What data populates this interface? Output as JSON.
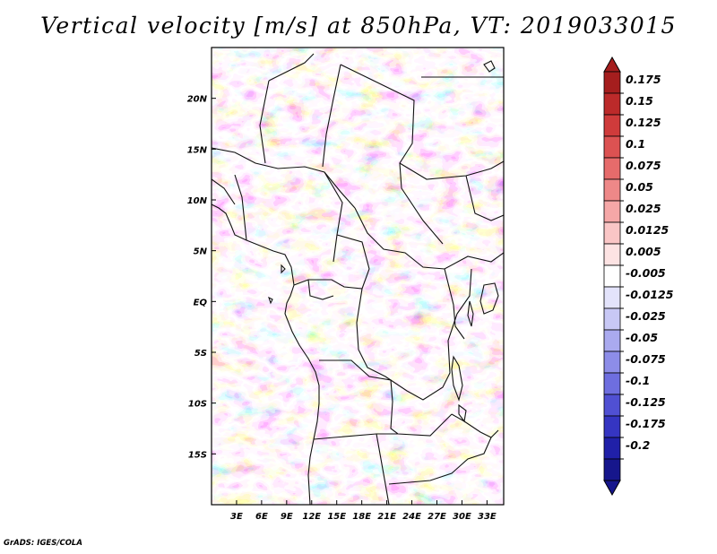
{
  "title": "Vertical velocity [m/s] at 850hPa, VT: 2019033015",
  "credit": "GrADS: IGES/COLA",
  "map": {
    "lon_range": [
      0,
      35
    ],
    "lat_range": [
      -20,
      25
    ],
    "lon_ticks": [
      {
        "value": 3,
        "label": "3E"
      },
      {
        "value": 6,
        "label": "6E"
      },
      {
        "value": 9,
        "label": "9E"
      },
      {
        "value": 12,
        "label": "12E"
      },
      {
        "value": 15,
        "label": "15E"
      },
      {
        "value": 18,
        "label": "18E"
      },
      {
        "value": 21,
        "label": "21E"
      },
      {
        "value": 24,
        "label": "24E"
      },
      {
        "value": 27,
        "label": "27E"
      },
      {
        "value": 30,
        "label": "30E"
      },
      {
        "value": 33,
        "label": "33E"
      }
    ],
    "lat_ticks": [
      {
        "value": 20,
        "label": "20N"
      },
      {
        "value": 15,
        "label": "15N"
      },
      {
        "value": 10,
        "label": "10N"
      },
      {
        "value": 5,
        "label": "5N"
      },
      {
        "value": 0,
        "label": "EQ"
      },
      {
        "value": -5,
        "label": "5S"
      },
      {
        "value": -10,
        "label": "10S"
      },
      {
        "value": -15,
        "label": "15S"
      }
    ]
  },
  "colorbar": {
    "levels": [
      {
        "label": "0.175",
        "color": "#a51e1e"
      },
      {
        "label": "0.15",
        "color": "#bc2a2a"
      },
      {
        "label": "0.125",
        "color": "#cf3b3b"
      },
      {
        "label": "0.1",
        "color": "#dc5252"
      },
      {
        "label": "0.075",
        "color": "#e66b6b"
      },
      {
        "label": "0.05",
        "color": "#ee8888"
      },
      {
        "label": "0.025",
        "color": "#f5a7a7"
      },
      {
        "label": "0.0125",
        "color": "#fac6c6"
      },
      {
        "label": "0.005",
        "color": "#fde3e3"
      },
      {
        "label": "-0.005",
        "color": "#ffffff"
      },
      {
        "label": "-0.0125",
        "color": "#e3e3fb"
      },
      {
        "label": "-0.025",
        "color": "#c8c8f5"
      },
      {
        "label": "-0.05",
        "color": "#aaaaef"
      },
      {
        "label": "-0.075",
        "color": "#8d8de8"
      },
      {
        "label": "-0.1",
        "color": "#6e6edf"
      },
      {
        "label": "-0.125",
        "color": "#5050d3"
      },
      {
        "label": "-0.175",
        "color": "#3535c2"
      },
      {
        "label": "-0.2",
        "color": "#2020a8"
      }
    ],
    "top_triangle_color": "#a51e1e",
    "bottom_triangle_color": "#16168c"
  }
}
